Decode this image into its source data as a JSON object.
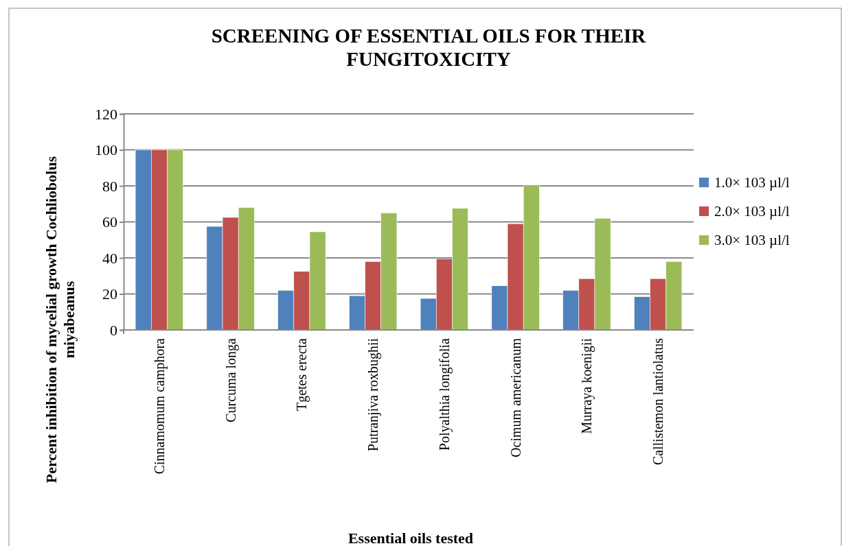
{
  "chart_data": {
    "type": "bar",
    "title": "SCREENING OF ESSENTIAL OILS FOR THEIR FUNGITOXICITY",
    "xlabel": "Essential oils tested",
    "ylabel": "Percent inhibition of mycelial growth Cochliobolus miyabeanus",
    "categories": [
      "Cinnamomum camphora",
      "Curcuma longa",
      "Tgetes erecta",
      "Putranjiva roxbughii",
      "Polyalthia longifolia",
      "Ocimum americanum",
      "Murraya koenigii",
      "Callistemon lantiolatus"
    ],
    "series": [
      {
        "name": "1.0× 103 µl/l",
        "color": "#4f81bd",
        "values": [
          100,
          57.5,
          22,
          19,
          17.5,
          24.5,
          22,
          18.5
        ]
      },
      {
        "name": "2.0× 103 µl/l",
        "color": "#c0504d",
        "values": [
          100,
          62.5,
          32.5,
          38,
          39.5,
          59,
          28.5,
          28.5
        ]
      },
      {
        "name": "3.0× 103 µl/l",
        "color": "#9bbb59",
        "values": [
          100,
          68,
          54.5,
          65,
          67.5,
          80.5,
          62,
          38
        ]
      }
    ],
    "ylim": [
      0,
      120
    ],
    "yticks": [
      0,
      20,
      40,
      60,
      80,
      100,
      120
    ],
    "grid": "y",
    "legend": "right"
  }
}
